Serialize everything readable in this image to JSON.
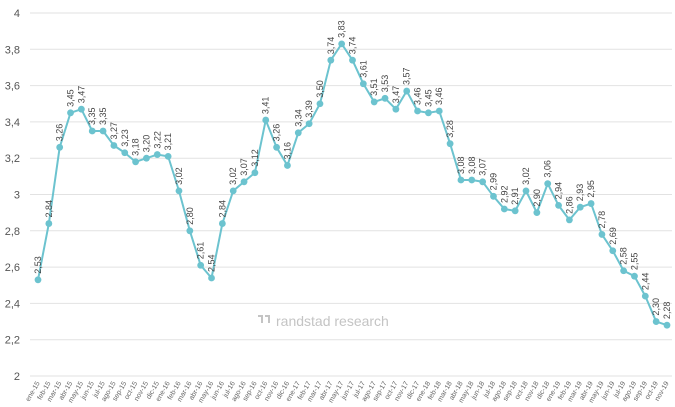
{
  "chart_data": {
    "type": "line",
    "title": "",
    "xlabel": "",
    "ylabel": "",
    "ylim": [
      2,
      4
    ],
    "yticks": [
      "2",
      "2,2",
      "2,4",
      "2,6",
      "2,8",
      "3",
      "3,2",
      "3,4",
      "3,6",
      "3,8",
      "4"
    ],
    "grid": "horizontal",
    "legend": "none",
    "line_color": "#6cc3cf",
    "marker_color": "#6cc3cf",
    "categories": [
      "ene-15",
      "feb-15",
      "mar-15",
      "abr-15",
      "may-15",
      "jun-15",
      "jul-15",
      "ago-15",
      "sep-15",
      "oct-15",
      "nov-15",
      "dic-15",
      "ene-16",
      "feb-16",
      "mar-16",
      "abr-16",
      "may-16",
      "jun-16",
      "jul-16",
      "ago-16",
      "sep-16",
      "oct-16",
      "nov-16",
      "dic-16",
      "ene-17",
      "feb-17",
      "mar-17",
      "abr-17",
      "may-17",
      "jun-17",
      "jul-17",
      "ago-17",
      "sep-17",
      "oct-17",
      "nov-17",
      "dic-17",
      "ene-18",
      "feb-18",
      "mar-18",
      "abr-18",
      "may-18",
      "jun-18",
      "jul-18",
      "ago-18",
      "sep-18",
      "oct-18",
      "nov-18",
      "dic-18",
      "ene-19",
      "feb-19",
      "mar-19",
      "abr-19",
      "may-19",
      "jun-19",
      "jul-19",
      "ago-19",
      "sep-19",
      "oct-19",
      "nov-19"
    ],
    "values": [
      2.53,
      2.84,
      3.26,
      3.45,
      3.47,
      3.35,
      3.35,
      3.27,
      3.23,
      3.18,
      3.2,
      3.22,
      3.21,
      3.02,
      2.8,
      2.61,
      2.54,
      2.84,
      3.02,
      3.07,
      3.12,
      3.41,
      3.26,
      3.16,
      3.34,
      3.39,
      3.5,
      3.74,
      3.83,
      3.74,
      3.61,
      3.51,
      3.53,
      3.47,
      3.57,
      3.46,
      3.45,
      3.46,
      3.28,
      3.08,
      3.08,
      3.07,
      2.99,
      2.92,
      2.91,
      3.02,
      2.9,
      3.06,
      2.94,
      2.86,
      2.93,
      2.95,
      2.78,
      2.69,
      2.58,
      2.55,
      2.44,
      2.3,
      2.28
    ],
    "data_labels": [
      "2,53",
      "2,84",
      "3,26",
      "3,45",
      "3,47",
      "3,35",
      "3,35",
      "3,27",
      "3,23",
      "3,18",
      "3,20",
      "3,22",
      "3,21",
      "3,02",
      "2,80",
      "2,61",
      "2,54",
      "2,84",
      "3,02",
      "3,07",
      "3,12",
      "3,41",
      "3,26",
      "3,16",
      "3,34",
      "3,39",
      "3,50",
      "3,74",
      "3,83",
      "3,74",
      "3,61",
      "3,51",
      "3,53",
      "3,47",
      "3,57",
      "3,46",
      "3,45",
      "3,46",
      "3,28",
      "3,08",
      "3,08",
      "3,07",
      "2,99",
      "2,92",
      "2,91",
      "3,02",
      "2,90",
      "3,06",
      "2,94",
      "2,86",
      "2,93",
      "2,95",
      "2,78",
      "2,69",
      "2,58",
      "2,55",
      "2,44",
      "2,30",
      "2,28"
    ]
  },
  "watermark": {
    "text": "randstad research",
    "icon": "randstad-logo-icon",
    "color": "#c4c4c4"
  }
}
